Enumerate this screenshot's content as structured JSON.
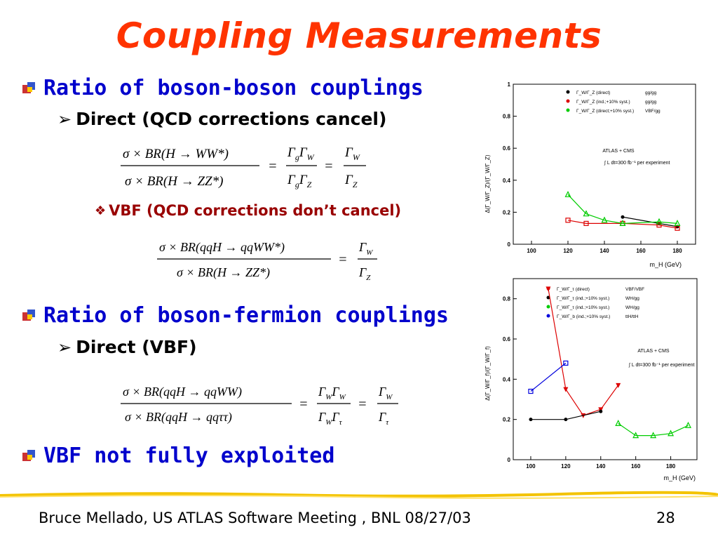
{
  "title": "Coupling Measurements",
  "bullets": {
    "b1": "Ratio of boson-boson couplings",
    "b1_sub": "Direct (QCD corrections cancel)",
    "b1_sub2": "VBF (QCD corrections don’t cancel)",
    "b2": "Ratio of boson-fermion couplings",
    "b2_sub": "Direct (VBF)",
    "b3": "VBF not fully exploited"
  },
  "footer": {
    "text": "Bruce Mellado, US ATLAS Software Meeting , BNL 08/27/03",
    "page": "28"
  },
  "plot1": {
    "ylabel": "Δ(Γ_W/Γ_Z)/(Γ_W/Γ_Z)",
    "xlabel": "m_H (GeV)",
    "legend": [
      {
        "label": "Γ_W/Γ_Z (direct)",
        "tag": "gg/gg",
        "color": "#000000"
      },
      {
        "label": "Γ_W/Γ_Z (ind.;+10% syst.)",
        "tag": "gg/gg",
        "color": "#dd0000"
      },
      {
        "label": "Γ_W/Γ_Z (direct;+10% syst.)",
        "tag": "VBF/gg",
        "color": "#00cc00"
      }
    ],
    "annotation1": "ATLAS + CMS",
    "annotation2": "∫ L dt=300 fb⁻¹ per experiment",
    "xticks": [
      "100",
      "120",
      "140",
      "160",
      "180"
    ],
    "yticks": [
      "0",
      "0.2",
      "0.4",
      "0.6",
      "0.8",
      "1"
    ]
  },
  "plot2": {
    "ylabel": "Δ(Γ_W/Γ_f)/(Γ_W/Γ_f)",
    "xlabel": "m_H (GeV)",
    "legend": [
      {
        "label": "Γ_W/Γ_τ (direct)",
        "tag": "VBF/VBF",
        "color": "#dd0000"
      },
      {
        "label": "Γ_W/Γ_τ (ind.;+10% syst.)",
        "tag": "WH/gg",
        "color": "#000000"
      },
      {
        "label": "Γ_W/Γ_τ (ind.;+10% syst.)",
        "tag": "WH/gg",
        "color": "#00cc00"
      },
      {
        "label": "Γ_W/Γ_b (ind.;+10% syst.)",
        "tag": "ttH/ttH",
        "color": "#0000dd"
      }
    ],
    "annotation1": "ATLAS + CMS",
    "annotation2": "∫ L dt=300 fb⁻¹ per experiment",
    "xticks": [
      "100",
      "120",
      "140",
      "160",
      "180"
    ],
    "yticks": [
      "0",
      "0.2",
      "0.4",
      "0.6",
      "0.8"
    ]
  },
  "chart_data": [
    {
      "type": "line",
      "xlabel": "m_H (GeV)",
      "ylabel": "Δ(Γ_W/Γ_Z)/(Γ_W/Γ_Z)",
      "xlim": [
        90,
        190
      ],
      "ylim": [
        0,
        1
      ],
      "series": [
        {
          "name": "Γ_W/Γ_Z (direct)",
          "x": [
            150,
            170,
            180
          ],
          "y": [
            0.17,
            0.13,
            0.11
          ],
          "color": "#000000"
        },
        {
          "name": "Γ_W/Γ_Z (ind.;+10% syst.)",
          "x": [
            120,
            130,
            150,
            170,
            180
          ],
          "y": [
            0.15,
            0.13,
            0.13,
            0.12,
            0.1
          ],
          "color": "#dd0000"
        },
        {
          "name": "Γ_W/Γ_Z (direct;+10% syst.)",
          "x": [
            120,
            130,
            140,
            150,
            170,
            180
          ],
          "y": [
            0.31,
            0.19,
            0.15,
            0.13,
            0.14,
            0.13
          ],
          "color": "#00cc00"
        }
      ]
    },
    {
      "type": "line",
      "xlabel": "m_H (GeV)",
      "ylabel": "Δ(Γ_W/Γ_f)/(Γ_W/Γ_f)",
      "xlim": [
        90,
        195
      ],
      "ylim": [
        0,
        0.9
      ],
      "series": [
        {
          "name": "Γ_W/Γ_τ (direct)",
          "x": [
            110,
            120,
            130,
            140,
            150
          ],
          "y": [
            0.85,
            0.35,
            0.22,
            0.25,
            0.37
          ],
          "color": "#dd0000"
        },
        {
          "name": "Γ_W/Γ_τ (ind.;+10% syst.) WH/gg",
          "x": [
            100,
            120,
            140
          ],
          "y": [
            0.2,
            0.2,
            0.24
          ],
          "color": "#000000"
        },
        {
          "name": "Γ_W/Γ_τ (ind.;+10% syst.) WH/gg green",
          "x": [
            150,
            160,
            170,
            180,
            190
          ],
          "y": [
            0.18,
            0.12,
            0.12,
            0.13,
            0.17
          ],
          "color": "#00cc00"
        },
        {
          "name": "Γ_W/Γ_b (ind.;+10% syst.)",
          "x": [
            100,
            120
          ],
          "y": [
            0.34,
            0.48
          ],
          "color": "#0000dd"
        }
      ]
    }
  ]
}
